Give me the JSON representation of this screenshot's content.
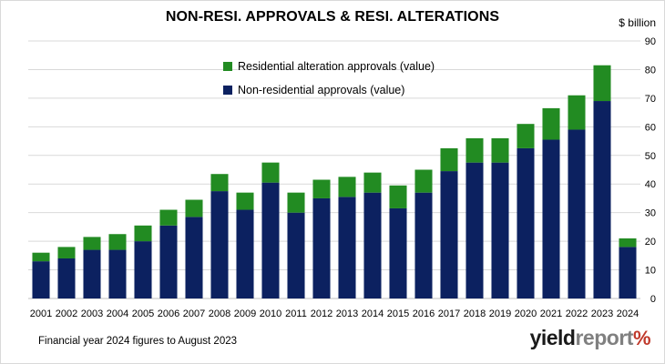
{
  "chart_data": {
    "type": "bar",
    "stacked": true,
    "title": "NON-RESI. APPROVALS & RESI. ALTERATIONS",
    "unit_label": "$ billion",
    "categories": [
      "2001",
      "2002",
      "2003",
      "2004",
      "2005",
      "2006",
      "2007",
      "2008",
      "2009",
      "2010",
      "2011",
      "2012",
      "2013",
      "2014",
      "2015",
      "2016",
      "2017",
      "2018",
      "2019",
      "2020",
      "2021",
      "2022",
      "2023",
      "2024"
    ],
    "series": [
      {
        "name": "Non-residential approvals (value)",
        "color": "#0c2160",
        "values": [
          13,
          14,
          17,
          17,
          20,
          25.5,
          28.5,
          37.5,
          31,
          40.5,
          30,
          35,
          35.5,
          37,
          31.5,
          37,
          44.5,
          47.5,
          47.5,
          52.5,
          55.5,
          59,
          69,
          18
        ]
      },
      {
        "name": "Residential alteration approvals (value)",
        "color": "#228b22",
        "values": [
          3,
          4,
          4.5,
          5.5,
          5.5,
          5.5,
          6,
          6,
          6,
          7,
          7,
          6.5,
          7,
          7,
          8,
          8,
          8,
          8.5,
          8.5,
          8.5,
          11,
          12,
          12.5,
          3
        ]
      }
    ],
    "ylim": [
      0,
      90
    ],
    "yticks": [
      0,
      10,
      20,
      30,
      40,
      50,
      60,
      70,
      80,
      90
    ],
    "grid": true,
    "legend_placement": "top-center"
  },
  "footnote": "Financial year 2024 figures to August 2023",
  "logo": {
    "word1": "yield",
    "word2": "report",
    "symbol": "%"
  }
}
